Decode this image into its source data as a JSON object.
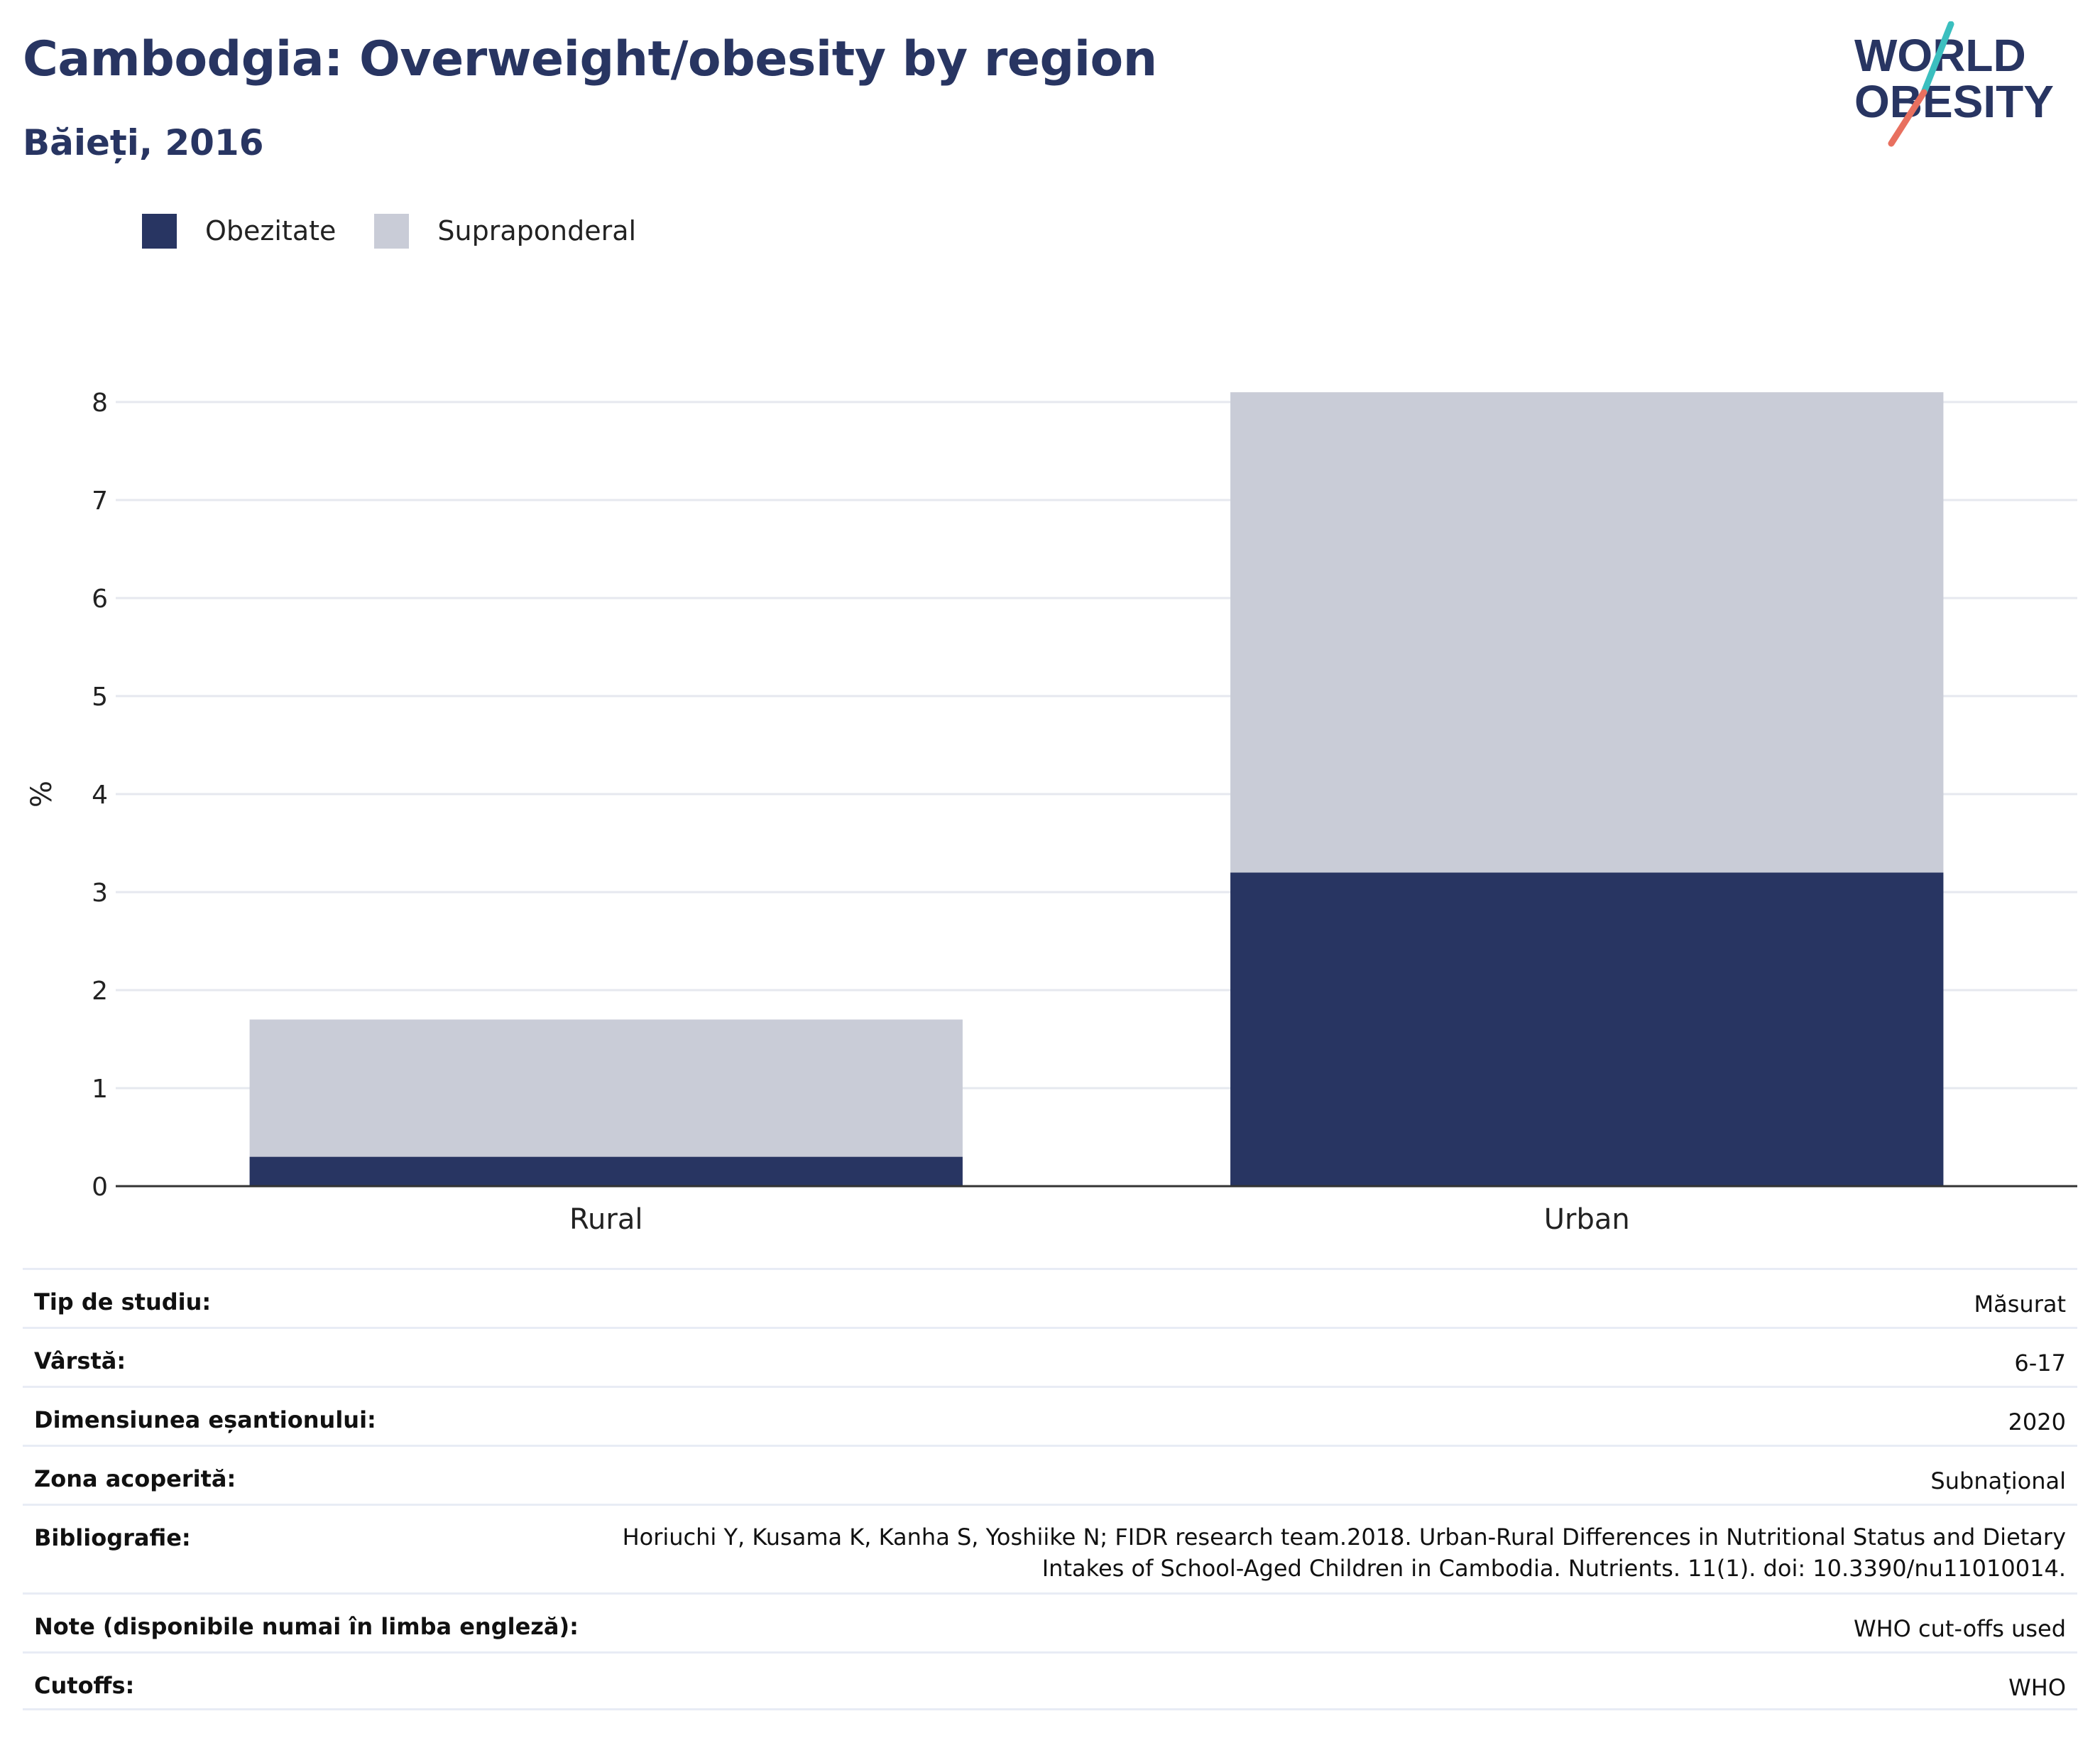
{
  "title": "Cambodgia: Overweight/obesity by region",
  "subtitle": "Băieți, 2016",
  "logo": {
    "line1": "WORLD",
    "line2": "OBESITY",
    "accent_teal": "#3bbfbf",
    "accent_coral": "#e8705f",
    "text_color": "#283562"
  },
  "colors": {
    "obesity": "#283562",
    "overweight": "#c9ccd7",
    "grid": "#e6e8ef",
    "axis": "#333333"
  },
  "legend": [
    {
      "label": "Obezitate",
      "color": "#283562"
    },
    {
      "label": "Supraponderal",
      "color": "#c9ccd7"
    }
  ],
  "chart_data": {
    "type": "bar",
    "stacked": true,
    "categories": [
      "Rural",
      "Urban"
    ],
    "series": [
      {
        "name": "Obezitate",
        "values": [
          0.3,
          3.2
        ]
      },
      {
        "name": "Supraponderal",
        "values": [
          1.4,
          4.9
        ]
      }
    ],
    "ylabel": "%",
    "ylim": [
      0,
      8
    ],
    "yticks": [
      0,
      1,
      2,
      3,
      4,
      5,
      6,
      7,
      8
    ],
    "grid": true,
    "legend_position": "top-left"
  },
  "metadata": [
    {
      "label": "Tip de studiu:",
      "value": "Măsurat"
    },
    {
      "label": "Vârstă:",
      "value": "6-17"
    },
    {
      "label": "Dimensiunea eșantionului:",
      "value": "2020"
    },
    {
      "label": "Zona acoperită:",
      "value": "Subnațional"
    },
    {
      "label": "Bibliografie:",
      "value": "Horiuchi Y, Kusama K, Kanha S, Yoshiike N; FIDR research team.2018. Urban-Rural Differences in Nutritional Status and Dietary Intakes of School-Aged Children in Cambodia. Nutrients. 11(1). doi: 10.3390/nu11010014."
    },
    {
      "label": "Note (disponibile numai în limba engleză):",
      "value": "WHO cut-offs used"
    },
    {
      "label": "Cutoffs:",
      "value": "WHO"
    }
  ]
}
